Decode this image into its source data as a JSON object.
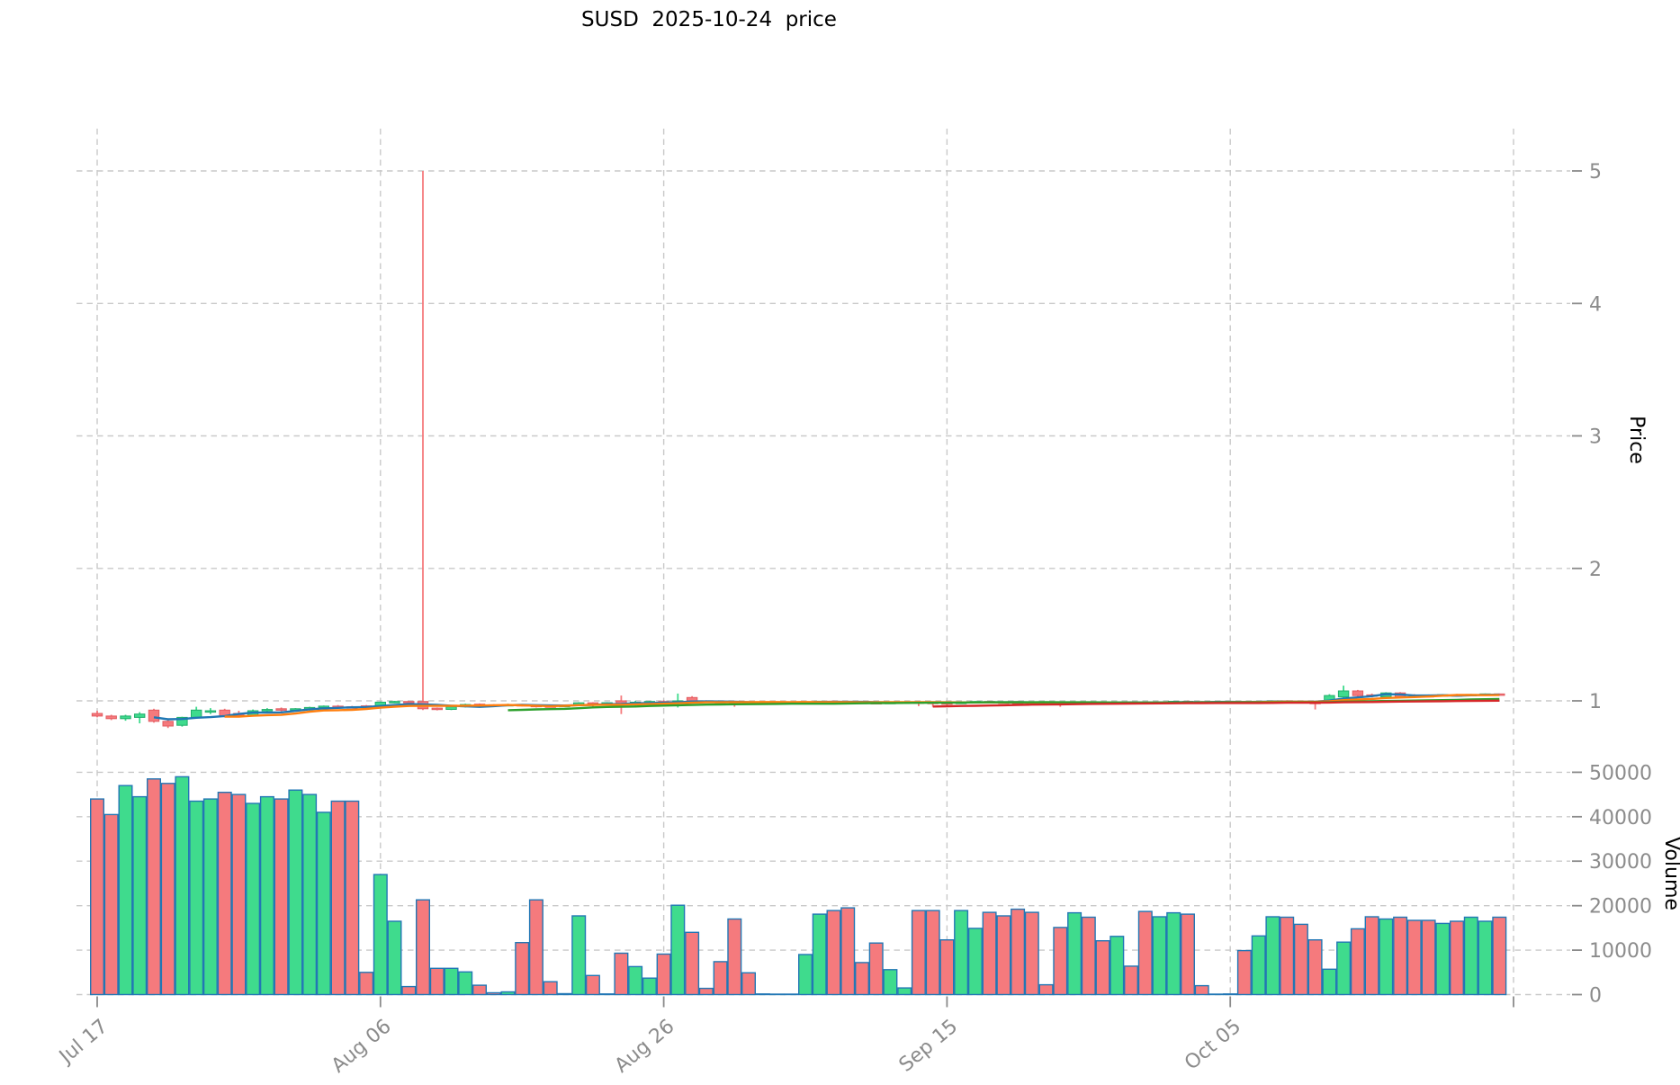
{
  "title": "SUSD  2025-10-24  price",
  "chart_data": {
    "type": "candlestick",
    "symbol": "SUSD",
    "as_of_date": "2025-10-24",
    "title": "SUSD  2025-10-24  price",
    "legend_position": "none",
    "grid": true,
    "price_axis": {
      "label": "Price",
      "ticks": [
        1,
        2,
        3,
        4,
        5
      ],
      "side": "right"
    },
    "volume_axis": {
      "label": "Volume",
      "ticks": [
        0,
        10000,
        20000,
        30000,
        40000,
        50000
      ],
      "side": "right"
    },
    "x_axis": {
      "tick_labels": [
        "Jul 17",
        "Aug 06",
        "Aug 26",
        "Sep 15",
        "Oct 05",
        ""
      ],
      "tick_day_indices": [
        0,
        20,
        40,
        60,
        80,
        100
      ]
    },
    "moving_averages": [
      {
        "window": 5,
        "color": "#1f77b4"
      },
      {
        "window": 10,
        "color": "#ff7f0e"
      },
      {
        "window": 30,
        "color": "#2ca02c"
      },
      {
        "window": 60,
        "color": "#d62728"
      }
    ],
    "colors": {
      "up": "#3fdb8d",
      "down": "#f57a7d",
      "up_edge": "#21ad6b",
      "down_edge": "#e25b60",
      "volume_edge": "#2277b5",
      "grid": "#c9c9c9",
      "tick_label": "#8b8b8b",
      "axis_label": "#000000"
    },
    "ohlcv": [
      [
        "2025-07-17",
        0.905,
        0.925,
        0.875,
        0.885,
        44000
      ],
      [
        "2025-07-18",
        0.885,
        0.895,
        0.855,
        0.865,
        40500
      ],
      [
        "2025-07-19",
        0.865,
        0.895,
        0.85,
        0.885,
        47000
      ],
      [
        "2025-07-20",
        0.875,
        0.915,
        0.83,
        0.9,
        44500
      ],
      [
        "2025-07-21",
        0.93,
        0.94,
        0.835,
        0.845,
        48500
      ],
      [
        "2025-07-22",
        0.845,
        0.855,
        0.795,
        0.81,
        47500
      ],
      [
        "2025-07-23",
        0.815,
        0.88,
        0.805,
        0.875,
        49000
      ],
      [
        "2025-07-24",
        0.875,
        0.955,
        0.865,
        0.93,
        43500
      ],
      [
        "2025-07-25",
        0.92,
        0.945,
        0.9,
        0.925,
        44000
      ],
      [
        "2025-07-26",
        0.93,
        0.94,
        0.875,
        0.885,
        45500
      ],
      [
        "2025-07-27",
        0.905,
        0.925,
        0.875,
        0.89,
        45000
      ],
      [
        "2025-07-28",
        0.89,
        0.935,
        0.885,
        0.925,
        43000
      ],
      [
        "2025-07-29",
        0.925,
        0.945,
        0.915,
        0.935,
        44500
      ],
      [
        "2025-07-30",
        0.94,
        0.95,
        0.92,
        0.93,
        44000
      ],
      [
        "2025-07-31",
        0.93,
        0.945,
        0.925,
        0.94,
        46000
      ],
      [
        "2025-08-01",
        0.94,
        0.955,
        0.915,
        0.95,
        45000
      ],
      [
        "2025-08-02",
        0.95,
        0.965,
        0.94,
        0.96,
        41000
      ],
      [
        "2025-08-03",
        0.96,
        0.968,
        0.948,
        0.955,
        43500
      ],
      [
        "2025-08-04",
        0.955,
        0.962,
        0.942,
        0.95,
        43500
      ],
      [
        "2025-08-05",
        0.962,
        0.968,
        0.945,
        0.952,
        5000
      ],
      [
        "2025-08-06",
        0.952,
        0.995,
        0.948,
        0.99,
        27000
      ],
      [
        "2025-08-07",
        0.99,
        1.0,
        0.982,
        0.995,
        16500
      ],
      [
        "2025-08-08",
        0.995,
        1.0,
        0.985,
        0.99,
        1800
      ],
      [
        "2025-08-09",
        0.995,
        5.0,
        0.93,
        0.94,
        21300
      ],
      [
        "2025-08-10",
        0.945,
        0.95,
        0.928,
        0.935,
        5900
      ],
      [
        "2025-08-11",
        0.935,
        0.96,
        0.93,
        0.955,
        5900
      ],
      [
        "2025-08-12",
        0.955,
        0.978,
        0.95,
        0.972,
        5100
      ],
      [
        "2025-08-13",
        0.975,
        0.98,
        0.962,
        0.97,
        2100
      ],
      [
        "2025-08-14",
        0.97,
        0.975,
        0.958,
        0.968,
        400
      ],
      [
        "2025-08-15",
        0.968,
        0.978,
        0.962,
        0.972,
        600
      ],
      [
        "2025-08-16",
        0.972,
        0.976,
        0.958,
        0.966,
        11700
      ],
      [
        "2025-08-17",
        0.966,
        0.972,
        0.95,
        0.962,
        21300
      ],
      [
        "2025-08-18",
        0.962,
        0.968,
        0.954,
        0.958,
        2900
      ],
      [
        "2025-08-19",
        0.958,
        0.97,
        0.955,
        0.966,
        200
      ],
      [
        "2025-08-20",
        0.966,
        0.99,
        0.962,
        0.985,
        17700
      ],
      [
        "2025-08-21",
        0.985,
        0.99,
        0.948,
        0.978,
        4300
      ],
      [
        "2025-08-22",
        0.978,
        0.99,
        0.974,
        0.986,
        150
      ],
      [
        "2025-08-23",
        1.0,
        1.04,
        0.9,
        0.97,
        9300
      ],
      [
        "2025-08-24",
        0.97,
        1.0,
        0.963,
        0.99,
        6300
      ],
      [
        "2025-08-25",
        0.99,
        1.0,
        0.985,
        0.995,
        3700
      ],
      [
        "2025-08-26",
        0.995,
        1.005,
        0.985,
        0.99,
        9100
      ],
      [
        "2025-08-27",
        0.99,
        1.055,
        0.95,
        1.0,
        20100
      ],
      [
        "2025-08-28",
        1.025,
        1.035,
        0.995,
        1.0,
        14000
      ],
      [
        "2025-08-29",
        1.0,
        1.005,
        0.99,
        0.995,
        1400
      ],
      [
        "2025-08-30",
        0.995,
        1.0,
        0.985,
        0.99,
        7400
      ],
      [
        "2025-08-31",
        0.99,
        0.998,
        0.955,
        0.985,
        17000
      ],
      [
        "2025-09-01",
        0.985,
        0.992,
        0.978,
        0.982,
        4900
      ],
      [
        "2025-09-02",
        0.982,
        0.99,
        0.978,
        0.986,
        150
      ],
      [
        "2025-09-03",
        0.986,
        0.992,
        0.982,
        0.988,
        100
      ],
      [
        "2025-09-04",
        0.988,
        0.994,
        0.984,
        0.99,
        100
      ],
      [
        "2025-09-05",
        0.988,
        0.996,
        0.984,
        0.994,
        9000
      ],
      [
        "2025-09-06",
        0.994,
        1.0,
        0.988,
        0.997,
        18100
      ],
      [
        "2025-09-07",
        0.997,
        1.002,
        0.99,
        0.993,
        18900
      ],
      [
        "2025-09-08",
        0.993,
        0.999,
        0.986,
        0.99,
        19500
      ],
      [
        "2025-09-09",
        0.99,
        0.996,
        0.984,
        0.987,
        7200
      ],
      [
        "2025-09-10",
        0.987,
        0.993,
        0.981,
        0.984,
        11600
      ],
      [
        "2025-09-11",
        0.984,
        0.992,
        0.98,
        0.989,
        5600
      ],
      [
        "2025-09-12",
        0.989,
        0.995,
        0.985,
        0.992,
        1500
      ],
      [
        "2025-09-13",
        0.992,
        0.997,
        0.96,
        0.989,
        18900
      ],
      [
        "2025-09-14",
        0.989,
        0.995,
        0.955,
        0.986,
        18900
      ],
      [
        "2025-09-15",
        0.986,
        0.992,
        0.96,
        0.983,
        12300
      ],
      [
        "2025-09-16",
        0.983,
        0.993,
        0.978,
        0.99,
        18900
      ],
      [
        "2025-09-17",
        0.99,
        0.998,
        0.986,
        0.995,
        14900
      ],
      [
        "2025-09-18",
        0.995,
        1.0,
        0.984,
        0.991,
        18500
      ],
      [
        "2025-09-19",
        0.991,
        0.997,
        0.984,
        0.988,
        17700
      ],
      [
        "2025-09-20",
        0.988,
        0.994,
        0.982,
        0.985,
        19200
      ],
      [
        "2025-09-21",
        0.985,
        0.991,
        0.978,
        0.982,
        18500
      ],
      [
        "2025-09-22",
        0.982,
        0.988,
        0.976,
        0.98,
        2200
      ],
      [
        "2025-09-23",
        0.98,
        0.988,
        0.955,
        0.977,
        15100
      ],
      [
        "2025-09-24",
        0.977,
        0.993,
        0.974,
        0.99,
        18400
      ],
      [
        "2025-09-25",
        0.99,
        0.996,
        0.982,
        0.987,
        17400
      ],
      [
        "2025-09-26",
        0.987,
        0.993,
        0.98,
        0.984,
        12100
      ],
      [
        "2025-09-27",
        0.984,
        0.994,
        0.981,
        0.991,
        13100
      ],
      [
        "2025-09-28",
        0.991,
        0.996,
        0.983,
        0.987,
        6400
      ],
      [
        "2025-09-29",
        0.987,
        0.993,
        0.978,
        0.984,
        18700
      ],
      [
        "2025-09-30",
        0.984,
        0.994,
        0.98,
        0.991,
        17500
      ],
      [
        "2025-10-01",
        0.991,
        1.0,
        0.986,
        0.996,
        18400
      ],
      [
        "2025-10-02",
        0.996,
        1.002,
        0.988,
        0.992,
        18100
      ],
      [
        "2025-10-03",
        0.992,
        0.998,
        0.985,
        0.989,
        2000
      ],
      [
        "2025-10-04",
        0.989,
        0.995,
        0.985,
        0.992,
        100
      ],
      [
        "2025-10-05",
        0.992,
        0.998,
        0.988,
        0.995,
        150
      ],
      [
        "2025-10-06",
        0.995,
        1.0,
        0.984,
        0.989,
        9900
      ],
      [
        "2025-10-07",
        0.989,
        0.999,
        0.985,
        0.996,
        13200
      ],
      [
        "2025-10-08",
        0.996,
        1.004,
        0.99,
        1.0,
        17500
      ],
      [
        "2025-10-09",
        1.0,
        1.005,
        0.989,
        0.994,
        17400
      ],
      [
        "2025-10-10",
        0.994,
        1.0,
        0.985,
        0.989,
        15800
      ],
      [
        "2025-10-11",
        0.989,
        0.995,
        0.935,
        0.986,
        12300
      ],
      [
        "2025-10-12",
        0.994,
        1.05,
        0.988,
        1.04,
        5700
      ],
      [
        "2025-10-13",
        1.03,
        1.115,
        1.02,
        1.075,
        11800
      ],
      [
        "2025-10-14",
        1.075,
        1.082,
        1.025,
        1.04,
        14800
      ],
      [
        "2025-10-15",
        1.045,
        1.055,
        1.025,
        1.035,
        17500
      ],
      [
        "2025-10-16",
        1.03,
        1.065,
        1.02,
        1.06,
        17000
      ],
      [
        "2025-10-17",
        1.06,
        1.066,
        1.02,
        1.03,
        17400
      ],
      [
        "2025-10-18",
        1.042,
        1.05,
        1.028,
        1.036,
        16700
      ],
      [
        "2025-10-19",
        1.04,
        1.048,
        1.03,
        1.038,
        16700
      ],
      [
        "2025-10-20",
        1.038,
        1.05,
        1.032,
        1.046,
        16000
      ],
      [
        "2025-10-21",
        1.046,
        1.052,
        1.036,
        1.042,
        16500
      ],
      [
        "2025-10-22",
        1.042,
        1.052,
        1.036,
        1.048,
        17400
      ],
      [
        "2025-10-23",
        1.048,
        1.056,
        1.04,
        1.052,
        16500
      ],
      [
        "2025-10-24",
        1.052,
        1.055,
        1.038,
        1.045,
        17400
      ]
    ]
  }
}
